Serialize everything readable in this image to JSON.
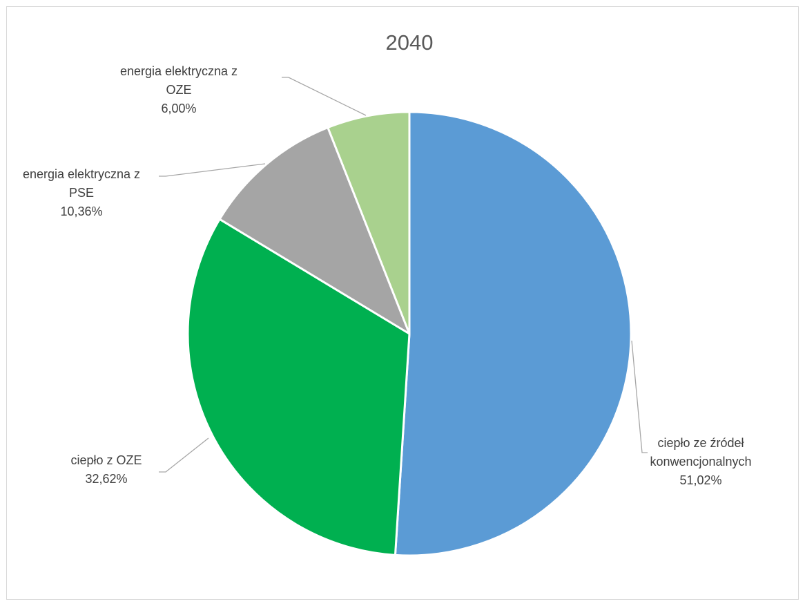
{
  "chart_data": {
    "type": "pie",
    "title": "2040",
    "slices": [
      {
        "name": "ciepło ze źródeł konwencjonalnych",
        "label_lines": [
          "ciepło ze źródeł",
          "konwencjonalnych"
        ],
        "value": 51.02,
        "value_label": "51,02%",
        "color": "#5b9bd5"
      },
      {
        "name": "ciepło z OZE",
        "label_lines": [
          "ciepło z OZE"
        ],
        "value": 32.62,
        "value_label": "32,62%",
        "color": "#00b050"
      },
      {
        "name": "energia elektryczna z PSE",
        "label_lines": [
          "energia elektryczna z",
          "PSE"
        ],
        "value": 10.36,
        "value_label": "10,36%",
        "color": "#a5a5a5"
      },
      {
        "name": "energia elektryczna z OZE",
        "label_lines": [
          "energia elektryczna z",
          "OZE"
        ],
        "value": 6.0,
        "value_label": "6,00%",
        "color": "#a9d18e"
      }
    ],
    "start_angle": "12 o'clock",
    "direction": "clockwise",
    "legend": "none",
    "data_labels": "outside with leader lines"
  }
}
